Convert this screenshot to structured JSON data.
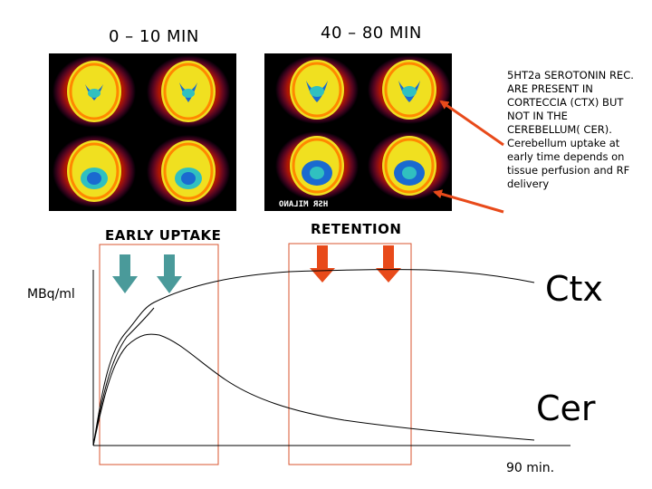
{
  "headings": {
    "left": "0 – 10 MIN",
    "right": "40 – 80 MIN"
  },
  "annotation": "5HT2a SEROTONIN REC. ARE PRESENT IN CORTECCIA (CTX) BUT NOT IN THE CEREBELLUM( CER). Cerebellum uptake at early time depends on tissue perfusion and RF delivery",
  "scan_watermark": "HSR MILANO",
  "labels": {
    "early_uptake": "EARLY UPTAKE",
    "retention": "RETENTION",
    "y_unit": "MBq/ml",
    "ctx": "Ctx",
    "cer": "Cer",
    "end_time": "90 min."
  },
  "colors": {
    "early_arrow": "#4a9a9a",
    "retention_arrow": "#e84a1a",
    "pointer_arrow": "#e84a1a",
    "box": "#d9542f"
  }
}
